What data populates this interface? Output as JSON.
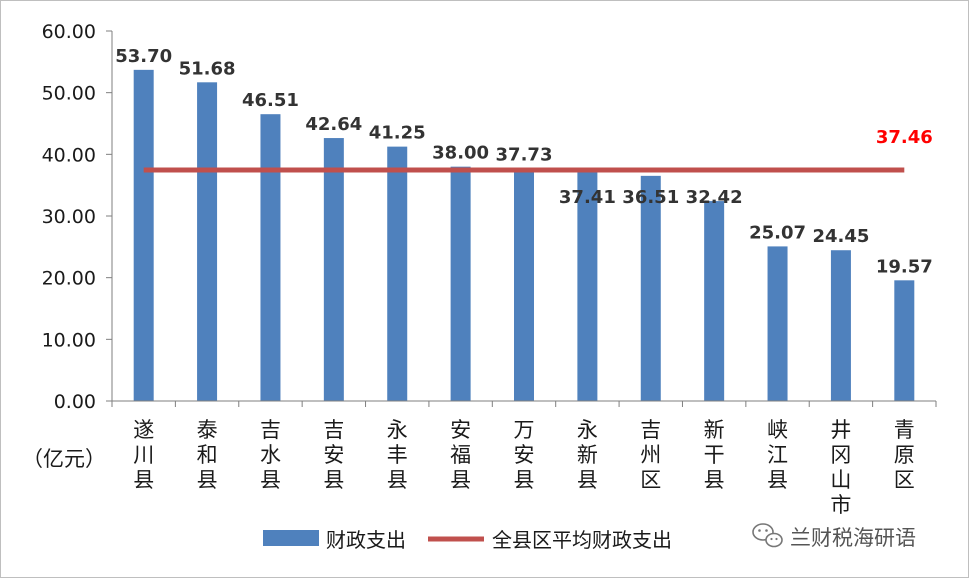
{
  "chart_data": {
    "type": "bar",
    "unit_label": "（亿元）",
    "categories": [
      "遂川县",
      "泰和县",
      "吉水县",
      "吉安县",
      "永丰县",
      "安福县",
      "万安县",
      "永新县",
      "吉州区",
      "新干县",
      "峡江县",
      "井冈山市",
      "青原区"
    ],
    "series": [
      {
        "name": "财政支出",
        "type": "bar",
        "color": "#4f81bd",
        "values": [
          53.7,
          51.68,
          46.51,
          42.64,
          41.25,
          38.0,
          37.73,
          37.41,
          36.51,
          32.42,
          25.07,
          24.45,
          19.57
        ],
        "value_labels": [
          "53.70",
          "51.68",
          "46.51",
          "42.64",
          "41.25",
          "38.00",
          "37.73",
          "37.41",
          "36.51",
          "32.42",
          "25.07",
          "24.45",
          "19.57"
        ]
      },
      {
        "name": "全县区平均财政支出",
        "type": "line",
        "color": "#c0504d",
        "value": 37.46,
        "value_label": "37.46",
        "label_color": "#ff0000"
      }
    ],
    "y_ticks": [
      "0.00",
      "10.00",
      "20.00",
      "30.00",
      "40.00",
      "50.00",
      "60.00"
    ],
    "ylim": [
      0,
      60
    ],
    "grid": false,
    "legend_position": "bottom"
  },
  "watermark": {
    "icon": "wechat-icon",
    "text": "兰财税海研语"
  }
}
